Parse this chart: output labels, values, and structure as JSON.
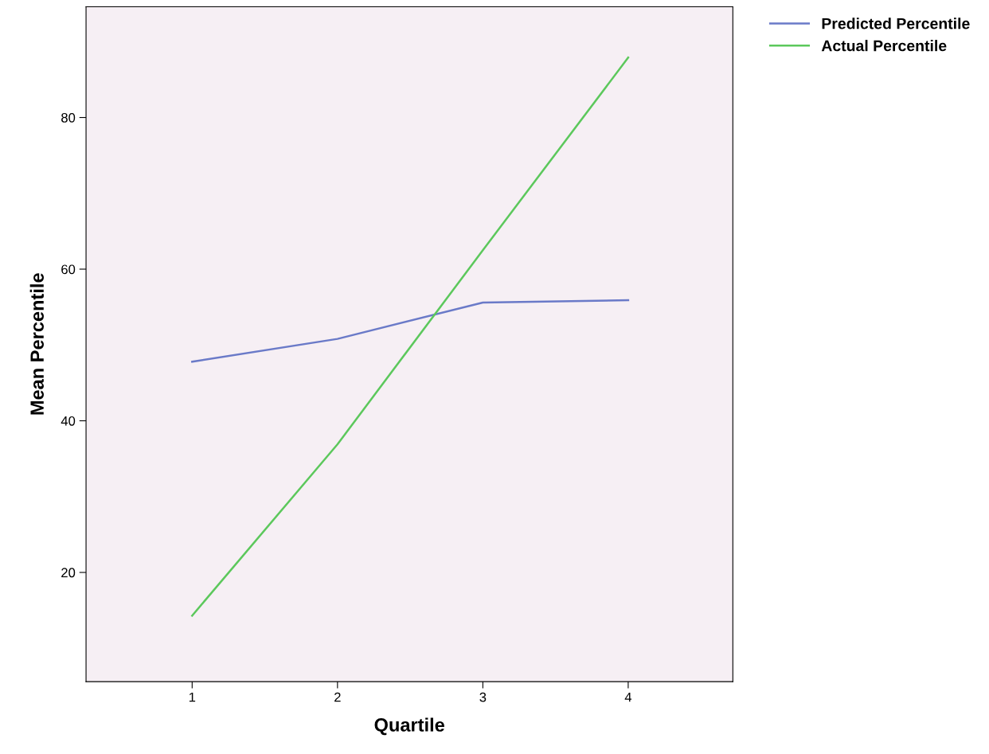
{
  "chart_data": {
    "type": "line",
    "xlabel": "Quartile",
    "ylabel": "Mean Percentile",
    "x": [
      1,
      2,
      3,
      4
    ],
    "series": [
      {
        "name": "Predicted Percentile",
        "color": "#6a7ac8",
        "values": [
          47.8,
          50.8,
          55.6,
          55.9
        ]
      },
      {
        "name": "Actual Percentile",
        "color": "#5cc85c",
        "values": [
          14.3,
          36.9,
          62.5,
          87.9
        ]
      }
    ],
    "xlim": [
      0.27,
      4.72
    ],
    "xticks": [
      1,
      2,
      3,
      4
    ],
    "ylim": [
      5.6,
      94.6
    ],
    "yticks": [
      20,
      40,
      60,
      80
    ],
    "grid": false,
    "legend": "top right",
    "marker": "none",
    "line_style": "solid"
  }
}
